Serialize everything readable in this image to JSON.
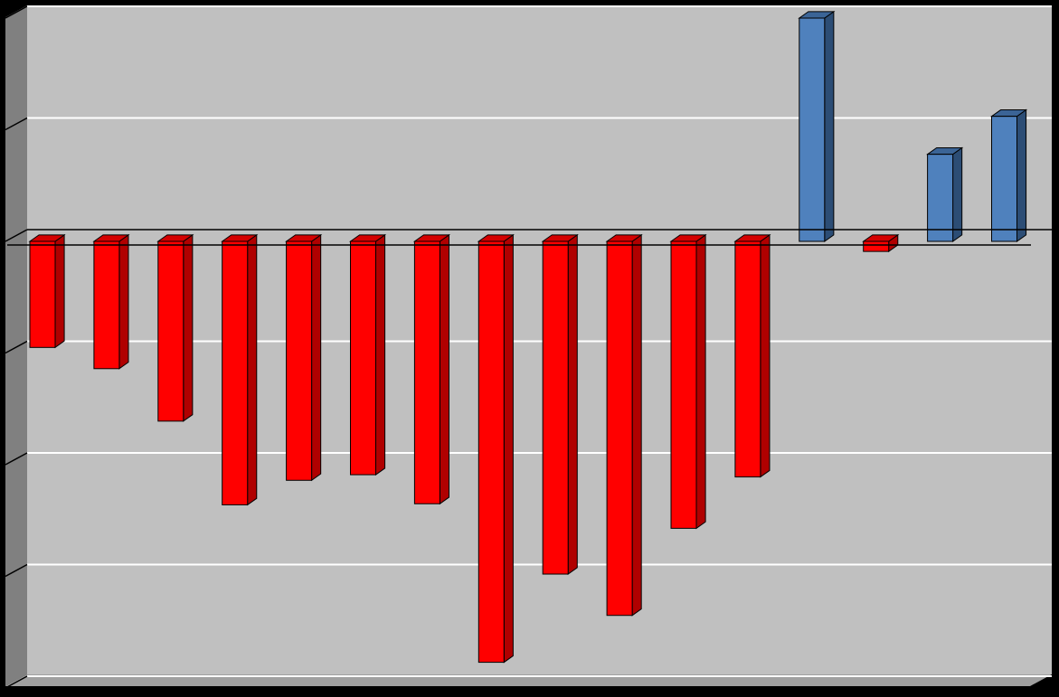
{
  "chart_data": {
    "type": "bar",
    "style": "3d-column",
    "title": "",
    "xlabel": "",
    "ylabel": "",
    "categories": [
      "",
      "",
      "",
      "",
      "",
      "",
      "",
      "",
      "",
      "",
      "",
      "",
      "",
      "",
      "",
      ""
    ],
    "values": [
      -0.95,
      -1.14,
      -1.61,
      -2.36,
      -2.14,
      -2.09,
      -2.35,
      -3.77,
      -2.98,
      -3.35,
      -2.57,
      -2.11,
      2.0,
      -0.09,
      0.78,
      1.12
    ],
    "ylim": [
      -4,
      2
    ],
    "gridlines": [
      2,
      1,
      0,
      -1,
      -2,
      -3,
      -4
    ],
    "grid": true,
    "legend": "none",
    "colors": {
      "negative": "#ff0000",
      "negative_side": "#b00000",
      "negative_top": "#d40000",
      "positive": "#4f81bd",
      "positive_side": "#2c4d75",
      "positive_top": "#3b6496",
      "plot_background": "#c0c0c0",
      "wall_side": "#808080",
      "floor": "#a0a0a0",
      "gridline": "#ffffff",
      "outer_background": "#000000"
    }
  }
}
